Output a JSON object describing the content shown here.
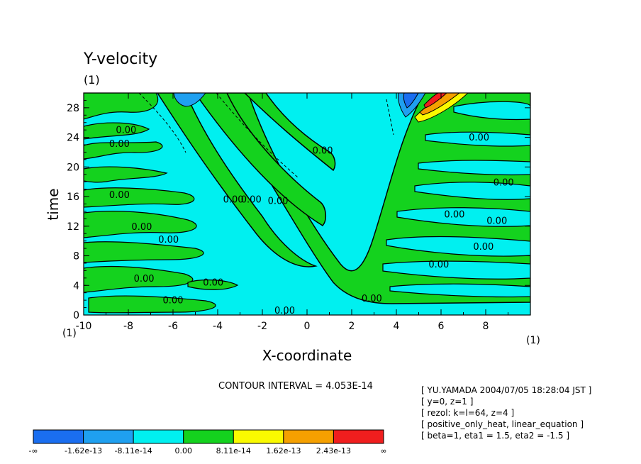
{
  "chart_data": {
    "type": "heatmap",
    "title": "Y-velocity",
    "title_unit": "(1)",
    "xlabel": "X-coordinate",
    "ylabel": "time",
    "x_unit": "(1)",
    "y_unit": "(1)",
    "xlim": [
      -10,
      10
    ],
    "ylim": [
      0,
      30
    ],
    "x_ticks": [
      "-10",
      "-8",
      "-6",
      "-4",
      "-2",
      "0",
      "2",
      "4",
      "6",
      "8"
    ],
    "x_tick_values": [
      -10,
      -8,
      -6,
      -4,
      -2,
      0,
      2,
      4,
      6,
      8
    ],
    "y_ticks": [
      "0",
      "4",
      "8",
      "12",
      "16",
      "20",
      "24",
      "28"
    ],
    "y_tick_values": [
      0,
      4,
      8,
      12,
      16,
      20,
      24,
      28
    ],
    "contour_interval": "CONTOUR INTERVAL = 4.053E-14",
    "contour_labels": [
      {
        "text": "0.00",
        "x": -8.1,
        "y": 24.6
      },
      {
        "text": "0.00",
        "x": -8.4,
        "y": 22.7
      },
      {
        "text": "0.00",
        "x": -8.4,
        "y": 15.8
      },
      {
        "text": "0.00",
        "x": -7.4,
        "y": 11.5
      },
      {
        "text": "0.00",
        "x": -6.2,
        "y": 9.8
      },
      {
        "text": "0.00",
        "x": -7.3,
        "y": 4.5
      },
      {
        "text": "0.00",
        "x": -6.0,
        "y": 1.6
      },
      {
        "text": "0.00",
        "x": -4.2,
        "y": 4.0
      },
      {
        "text": "0.00",
        "x": -3.3,
        "y": 15.2
      },
      {
        "text": "0.00",
        "x": -2.5,
        "y": 15.2
      },
      {
        "text": "0.00",
        "x": -1.3,
        "y": 15.0
      },
      {
        "text": "0.00",
        "x": 0.7,
        "y": 21.8
      },
      {
        "text": "0.00",
        "x": -1.0,
        "y": 0.2
      },
      {
        "text": "0.00",
        "x": 2.9,
        "y": 1.8
      },
      {
        "text": "0.00",
        "x": 7.7,
        "y": 23.6
      },
      {
        "text": "0.00",
        "x": 8.8,
        "y": 17.5
      },
      {
        "text": "0.00",
        "x": 6.6,
        "y": 13.2
      },
      {
        "text": "0.00",
        "x": 8.5,
        "y": 12.3
      },
      {
        "text": "0.00",
        "x": 7.9,
        "y": 8.8
      },
      {
        "text": "0.00",
        "x": 5.9,
        "y": 6.4
      }
    ],
    "legend": {
      "colors": [
        "#1a6ef0",
        "#1fa0f0",
        "#00f0f0",
        "#14d21e",
        "#fafa00",
        "#f5a000",
        "#f01e1e"
      ],
      "labels": [
        "-∞",
        "-1.62e-13",
        "-8.11e-14",
        "0.00",
        "8.11e-14",
        "1.62e-13",
        "2.43e-13",
        "∞"
      ]
    },
    "grid": false
  },
  "info_box": [
    "[ YU.YAMADA 2004/07/05 18:28:04 JST ]",
    "[ y=0, z=1 ]",
    "[ rezol: k=l=64, z=4 ]",
    "[ positive_only_heat, linear_equation ]",
    "[ beta=1, eta1 = 1.5, eta2 = -1.5 ]"
  ]
}
